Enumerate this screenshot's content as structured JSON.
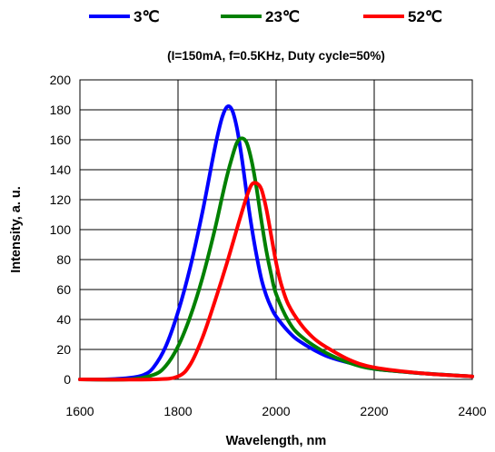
{
  "chart_data": {
    "type": "line",
    "title": "",
    "subtitle": "(I=150mA, f=0.5KHz, Duty cycle=50%)",
    "xlabel": "Wavelength,  nm",
    "ylabel": "Intensity, a. u.",
    "xlim": [
      1600,
      2400
    ],
    "ylim": [
      0,
      200
    ],
    "xticks": [
      1600,
      1800,
      2000,
      2200,
      2400
    ],
    "yticks": [
      0,
      20,
      40,
      60,
      80,
      100,
      120,
      140,
      160,
      180,
      200
    ],
    "grid": true,
    "legend_position": "top",
    "series": [
      {
        "name": "3℃",
        "color": "#0000ff",
        "x": [
          1600,
          1650,
          1700,
          1730,
          1750,
          1775,
          1800,
          1825,
          1850,
          1870,
          1880,
          1890,
          1900,
          1910,
          1920,
          1930,
          1940,
          1950,
          1960,
          1970,
          1980,
          1990,
          2000,
          2025,
          2050,
          2100,
          2150,
          2200,
          2300,
          2400
        ],
        "y": [
          0,
          0,
          1,
          3,
          8,
          22,
          45,
          75,
          112,
          146,
          162,
          175,
          182,
          180,
          168,
          148,
          124,
          102,
          83,
          67,
          56,
          48,
          42,
          32,
          25,
          16,
          11,
          7,
          4,
          2
        ]
      },
      {
        "name": "23℃",
        "color": "#008000",
        "x": [
          1600,
          1700,
          1750,
          1775,
          1800,
          1825,
          1850,
          1875,
          1890,
          1900,
          1910,
          1920,
          1930,
          1940,
          1950,
          1960,
          1970,
          1980,
          1990,
          2000,
          2025,
          2050,
          2100,
          2150,
          2200,
          2300,
          2400
        ],
        "y": [
          0,
          0,
          3,
          9,
          22,
          42,
          68,
          100,
          122,
          136,
          148,
          158,
          161,
          158,
          146,
          128,
          106,
          86,
          70,
          57,
          39,
          29,
          18,
          11,
          7,
          4,
          2
        ]
      },
      {
        "name": "52℃",
        "color": "#ff0000",
        "x": [
          1600,
          1750,
          1800,
          1825,
          1850,
          1875,
          1900,
          1925,
          1940,
          1950,
          1960,
          1970,
          1980,
          1990,
          2000,
          2010,
          2025,
          2050,
          2075,
          2100,
          2150,
          2200,
          2300,
          2400
        ],
        "y": [
          0,
          0,
          2,
          10,
          28,
          52,
          78,
          106,
          122,
          130,
          131,
          127,
          114,
          96,
          78,
          64,
          50,
          37,
          28,
          22,
          13,
          8,
          4,
          2
        ]
      }
    ]
  }
}
